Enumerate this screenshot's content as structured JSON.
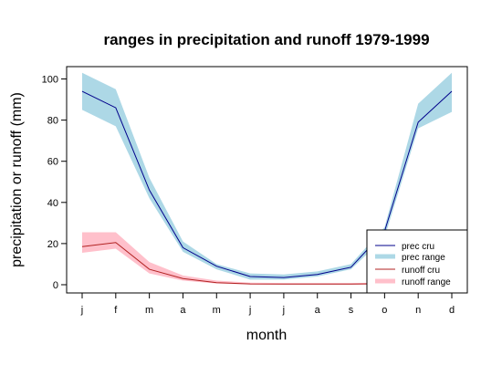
{
  "chart_data": {
    "type": "line",
    "title": "ranges in precipitation and runoff 1979-1999",
    "xlabel": "month",
    "ylabel": "precipitation or runoff (mm)",
    "categories": [
      "j",
      "f",
      "m",
      "a",
      "m",
      "j",
      "j",
      "a",
      "s",
      "o",
      "n",
      "d"
    ],
    "yticks": [
      0,
      20,
      40,
      60,
      80,
      100
    ],
    "ylim": [
      -4,
      106
    ],
    "grid": false,
    "legend_position": "bottom-right",
    "series": [
      {
        "name": "prec cru",
        "kind": "line",
        "color": "#00008b",
        "values": [
          94,
          86,
          46,
          18,
          9,
          4,
          3.5,
          5,
          8.5,
          26,
          79,
          94
        ]
      },
      {
        "name": "prec range",
        "kind": "band",
        "color": "#add8e6",
        "upper": [
          103,
          95,
          52,
          21,
          10,
          5.5,
          5,
          6.5,
          10,
          28,
          88,
          103
        ],
        "lower": [
          85,
          77,
          42,
          16,
          7.5,
          2.5,
          2.5,
          4,
          7.5,
          23,
          76,
          84
        ]
      },
      {
        "name": "runoff cru",
        "kind": "line",
        "color": "#b22222",
        "values": [
          18.5,
          20.5,
          7.5,
          3,
          1,
          0.4,
          0.3,
          0.3,
          0.3,
          0.5,
          1,
          1
        ]
      },
      {
        "name": "runoff range",
        "kind": "band",
        "color": "#ffc0cb",
        "upper": [
          25.5,
          25.5,
          11,
          4.5,
          2,
          1,
          0.8,
          0.8,
          0.8,
          1,
          1.5,
          1.5
        ],
        "lower": [
          15.5,
          17.5,
          5.5,
          2,
          0.6,
          0.1,
          0.1,
          0.1,
          0.1,
          0.1,
          0.3,
          0.3
        ]
      }
    ],
    "legend": [
      "prec cru",
      "prec range",
      "runoff cru",
      "runoff range"
    ]
  }
}
